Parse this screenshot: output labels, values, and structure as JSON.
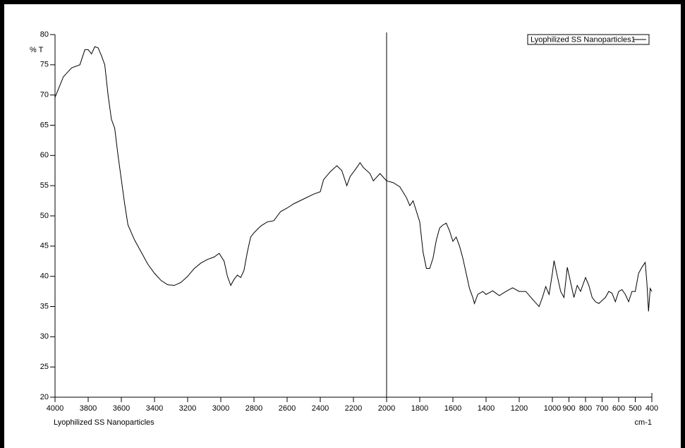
{
  "chart_data": {
    "type": "line",
    "y_label": "% T",
    "x_label": "cm-1",
    "caption": "Lyophilized SS Nanoparticles",
    "xlim": [
      4000,
      400
    ],
    "ylim": [
      20,
      80
    ],
    "xticks": [
      4000,
      3800,
      3600,
      3400,
      3200,
      3000,
      2800,
      2600,
      2400,
      2200,
      2000,
      1800,
      1600,
      1400,
      1200,
      1000,
      900,
      800,
      700,
      600,
      500,
      400
    ],
    "yticks": [
      20,
      25,
      30,
      35,
      40,
      45,
      50,
      55,
      60,
      65,
      70,
      75,
      80
    ],
    "cursor_x": 2000,
    "legend": "upper right",
    "x": [
      4000,
      3950,
      3900,
      3850,
      3820,
      3800,
      3780,
      3760,
      3740,
      3720,
      3700,
      3680,
      3660,
      3640,
      3620,
      3600,
      3580,
      3560,
      3520,
      3480,
      3440,
      3400,
      3360,
      3320,
      3280,
      3240,
      3200,
      3160,
      3120,
      3080,
      3040,
      3010,
      2980,
      2960,
      2940,
      2920,
      2900,
      2880,
      2860,
      2840,
      2820,
      2800,
      2760,
      2720,
      2680,
      2640,
      2600,
      2560,
      2500,
      2440,
      2400,
      2380,
      2340,
      2300,
      2270,
      2240,
      2220,
      2180,
      2160,
      2140,
      2100,
      2080,
      2040,
      2000,
      1960,
      1920,
      1880,
      1860,
      1840,
      1800,
      1780,
      1760,
      1740,
      1720,
      1700,
      1680,
      1660,
      1640,
      1620,
      1600,
      1580,
      1560,
      1540,
      1520,
      1500,
      1480,
      1470,
      1450,
      1420,
      1400,
      1360,
      1320,
      1280,
      1240,
      1200,
      1160,
      1120,
      1080,
      1060,
      1040,
      1020,
      1000,
      990,
      970,
      950,
      930,
      910,
      890,
      870,
      850,
      830,
      800,
      780,
      760,
      740,
      720,
      700,
      680,
      660,
      640,
      620,
      600,
      580,
      560,
      540,
      520,
      500,
      480,
      460,
      440,
      430,
      420,
      410,
      400
    ],
    "series": [
      {
        "name": "Lyophilized SS Nanoparticles1",
        "color": "#000000",
        "values": [
          69.6,
          73,
          74.5,
          75,
          77.5,
          77.5,
          76.8,
          78,
          77.8,
          76.5,
          75,
          70,
          66,
          64.5,
          60,
          56,
          52,
          48.5,
          46,
          44,
          42,
          40.5,
          39.3,
          38.6,
          38.5,
          39,
          40,
          41.3,
          42.2,
          42.8,
          43.2,
          43.8,
          42.5,
          40,
          38.5,
          39.5,
          40.2,
          39.8,
          41,
          44,
          46.5,
          47.2,
          48.3,
          49,
          49.2,
          50.7,
          51.3,
          52,
          52.8,
          53.6,
          54,
          56,
          57.3,
          58.3,
          57.5,
          55,
          56.5,
          58,
          58.8,
          58,
          57,
          55.8,
          57,
          55.8,
          55.5,
          54.8,
          53,
          51.7,
          52.5,
          49,
          44,
          41.3,
          41.3,
          43,
          46,
          48,
          48.5,
          48.8,
          47.5,
          45.8,
          46.5,
          45,
          43,
          40.5,
          38,
          36.5,
          35.5,
          37,
          37.5,
          37,
          37.6,
          36.8,
          37.5,
          38.1,
          37.5,
          37.5,
          36.2,
          35,
          36.5,
          38.3,
          37,
          40.5,
          42.6,
          40,
          37.5,
          36.5,
          41.5,
          39,
          36.5,
          38.5,
          37.5,
          39.8,
          38.5,
          36.5,
          35.8,
          35.5,
          36,
          36.5,
          37.5,
          37.2,
          35.8,
          37.5,
          37.8,
          37,
          35.8,
          37.5,
          37.5,
          40.5,
          41.5,
          42.3,
          39,
          34.2,
          38,
          37.5
        ]
      }
    ]
  }
}
